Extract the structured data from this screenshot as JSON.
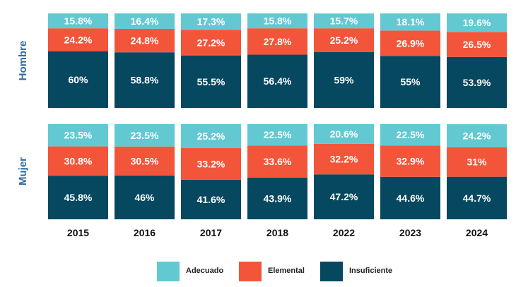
{
  "chart_data": {
    "type": "bar",
    "stacked": true,
    "normalized_percent": true,
    "categories": [
      "2015",
      "2016",
      "2017",
      "2018",
      "2022",
      "2023",
      "2024"
    ],
    "panels": [
      {
        "name": "Hombre",
        "series": [
          {
            "name": "Insuficiente",
            "values": [
              60,
              58.8,
              55.5,
              56.4,
              59,
              55,
              53.9
            ],
            "labels": [
              "60%",
              "58.8%",
              "55.5%",
              "56.4%",
              "59%",
              "55%",
              "53.9%"
            ]
          },
          {
            "name": "Elemental",
            "values": [
              24.2,
              24.8,
              27.2,
              27.8,
              25.2,
              26.9,
              26.5
            ],
            "labels": [
              "24.2%",
              "24.8%",
              "27.2%",
              "27.8%",
              "25.2%",
              "26.9%",
              "26.5%"
            ]
          },
          {
            "name": "Adecuado",
            "values": [
              15.8,
              16.4,
              17.3,
              15.8,
              15.7,
              18.1,
              19.6
            ],
            "labels": [
              "15.8%",
              "16.4%",
              "17.3%",
              "15.8%",
              "15.7%",
              "18.1%",
              "19.6%"
            ]
          }
        ]
      },
      {
        "name": "Mujer",
        "series": [
          {
            "name": "Insuficiente",
            "values": [
              45.8,
              46,
              41.6,
              43.9,
              47.2,
              44.6,
              44.7
            ],
            "labels": [
              "45.8%",
              "46%",
              "41.6%",
              "43.9%",
              "47.2%",
              "44.6%",
              "44.7%"
            ]
          },
          {
            "name": "Elemental",
            "values": [
              30.8,
              30.5,
              33.2,
              33.6,
              32.2,
              32.9,
              31
            ],
            "labels": [
              "30.8%",
              "30.5%",
              "33.2%",
              "33.6%",
              "32.2%",
              "32.9%",
              "31%"
            ]
          },
          {
            "name": "Adecuado",
            "values": [
              23.5,
              23.5,
              25.2,
              22.5,
              20.6,
              22.5,
              24.2
            ],
            "labels": [
              "23.5%",
              "23.5%",
              "25.2%",
              "22.5%",
              "20.6%",
              "22.5%",
              "24.2%"
            ]
          }
        ]
      }
    ],
    "legend": {
      "position": "bottom",
      "items": [
        {
          "name": "Adecuado",
          "color": "#62c9d3"
        },
        {
          "name": "Elemental",
          "color": "#f3553a"
        },
        {
          "name": "Insuficiente",
          "color": "#05485f"
        }
      ]
    },
    "colors": {
      "Adecuado": "#62c9d3",
      "Elemental": "#f3553a",
      "Insuficiente": "#05485f",
      "panel_label": "#2f6ca5",
      "year_label": "#111111",
      "value_label": "#ffffff",
      "value_label_adecuado": "#ffffff"
    },
    "grid": false,
    "ylim": [
      0,
      100
    ]
  }
}
